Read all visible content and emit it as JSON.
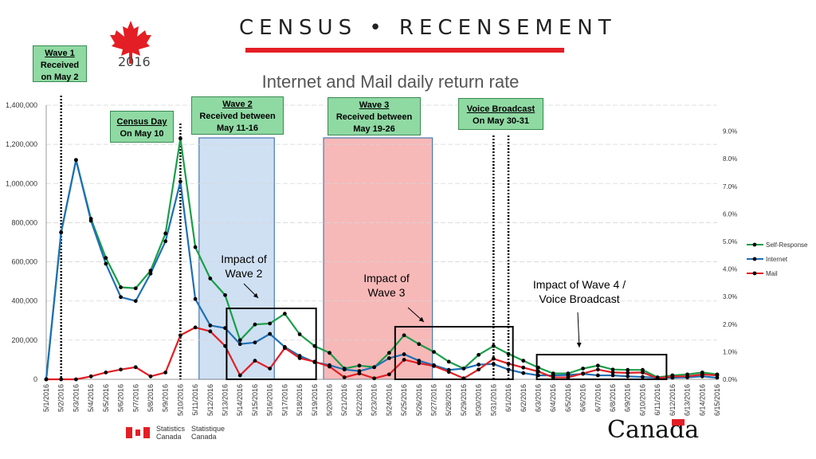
{
  "header": {
    "census_title": "CENSUS • RECENSEMENT",
    "year": "2016"
  },
  "chart_title": "Internet and Mail daily return rate",
  "callouts": {
    "wave1": {
      "title": "Wave 1",
      "line1": "Received",
      "line2": "on May 2"
    },
    "census_day": {
      "title": "Census Day",
      "line1": "On May 10"
    },
    "wave2": {
      "title": "Wave 2",
      "line1": "Received between",
      "line2": "May 11-16"
    },
    "wave3": {
      "title": "Wave 3",
      "line1": "Received between",
      "line2": "May 19-26"
    },
    "voice": {
      "title": "Voice Broadcast",
      "line1": "On May 30-31"
    }
  },
  "impacts": {
    "wave2": {
      "line1": "Impact of",
      "line2": "Wave 2"
    },
    "wave3": {
      "line1": "Impact of",
      "line2": "Wave 3"
    },
    "wave4": {
      "line1": "Impact of Wave 4 /",
      "line2": "Voice Broadcast"
    }
  },
  "footer": {
    "sc_en": "Statistics",
    "sc_en2": "Canada",
    "sc_fr": "Statistique",
    "sc_fr2": "Canada",
    "wordmark": "Canada"
  },
  "colors": {
    "self_response": "#1a9e48",
    "internet": "#1f6fb5",
    "mail": "#e31e24",
    "wave2_band": "#cfe0f3",
    "wave3_band": "#f7b8b8",
    "callout": "#8fd9a3"
  },
  "chart_data": {
    "type": "line",
    "categories": [
      "5/1/2016",
      "5/2/2016",
      "5/3/2016",
      "5/4/2016",
      "5/5/2016",
      "5/6/2016",
      "5/7/2016",
      "5/8/2016",
      "5/9/2016",
      "5/10/2016",
      "5/11/2016",
      "5/12/2016",
      "5/13/2016",
      "5/14/2016",
      "5/15/2016",
      "5/16/2016",
      "5/17/2016",
      "5/18/2016",
      "5/19/2016",
      "5/20/2016",
      "5/21/2016",
      "5/22/2016",
      "5/23/2016",
      "5/24/2016",
      "5/25/2016",
      "5/26/2016",
      "5/27/2016",
      "5/28/2016",
      "5/29/2016",
      "5/30/2016",
      "5/31/2016",
      "6/1/2016",
      "6/2/2016",
      "6/3/2016",
      "6/4/2016",
      "6/5/2016",
      "6/6/2016",
      "6/7/2016",
      "6/8/2016",
      "6/9/2016",
      "6/10/2016",
      "6/11/2016",
      "6/12/2016",
      "6/13/2016",
      "6/14/2016",
      "6/15/2016"
    ],
    "series": [
      {
        "name": "Self-Response",
        "color": "#1a9e48",
        "values": [
          0,
          750000,
          1120000,
          820000,
          620000,
          470000,
          465000,
          555000,
          745000,
          1230000,
          675000,
          515000,
          430000,
          200000,
          280000,
          285000,
          335000,
          230000,
          170000,
          135000,
          55000,
          70000,
          62000,
          135000,
          225000,
          180000,
          140000,
          90000,
          55000,
          125000,
          170000,
          130000,
          95000,
          60000,
          30000,
          30000,
          55000,
          70000,
          50000,
          48000,
          48000,
          10000,
          20000,
          25000,
          35000,
          25000
        ]
      },
      {
        "name": "Internet",
        "color": "#1f6fb5",
        "values": [
          0,
          750000,
          1120000,
          810000,
          590000,
          420000,
          400000,
          540000,
          705000,
          1010000,
          410000,
          275000,
          262000,
          180000,
          188000,
          232000,
          165000,
          120000,
          88000,
          72000,
          50000,
          42000,
          62000,
          108000,
          128000,
          95000,
          72000,
          48000,
          55000,
          75000,
          78000,
          50000,
          32000,
          20000,
          20000,
          22000,
          28000,
          20000,
          20000,
          15000,
          12000,
          8000,
          8000,
          10000,
          15000,
          8000
        ]
      },
      {
        "name": "Mail",
        "color": "#e31e24",
        "values": [
          0,
          0,
          0,
          15000,
          35000,
          50000,
          62000,
          15000,
          35000,
          225000,
          265000,
          245000,
          170000,
          20000,
          95000,
          55000,
          160000,
          108000,
          90000,
          65000,
          10000,
          30000,
          5000,
          25000,
          100000,
          82000,
          68000,
          38000,
          5000,
          50000,
          105000,
          80000,
          60000,
          40000,
          10000,
          10000,
          30000,
          50000,
          35000,
          33000,
          35000,
          5000,
          15000,
          15000,
          25000,
          20000
        ]
      }
    ],
    "y_left": {
      "min": 0,
      "max": 1400000,
      "ticks": [
        "0",
        "200,000",
        "400,000",
        "600,000",
        "800,000",
        "1,000,000",
        "1,200,000",
        "1,400,000"
      ]
    },
    "y_right": {
      "min": 0,
      "max": 0.1,
      "ticks": [
        "0.0%",
        "1.0%",
        "2.0%",
        "3.0%",
        "4.0%",
        "5.0%",
        "6.0%",
        "7.0%",
        "8.0%",
        "9.0%"
      ]
    },
    "legend": {
      "placement": "right",
      "entries": [
        "Self-Response",
        "Internet",
        "Mail"
      ]
    },
    "grid": true
  }
}
